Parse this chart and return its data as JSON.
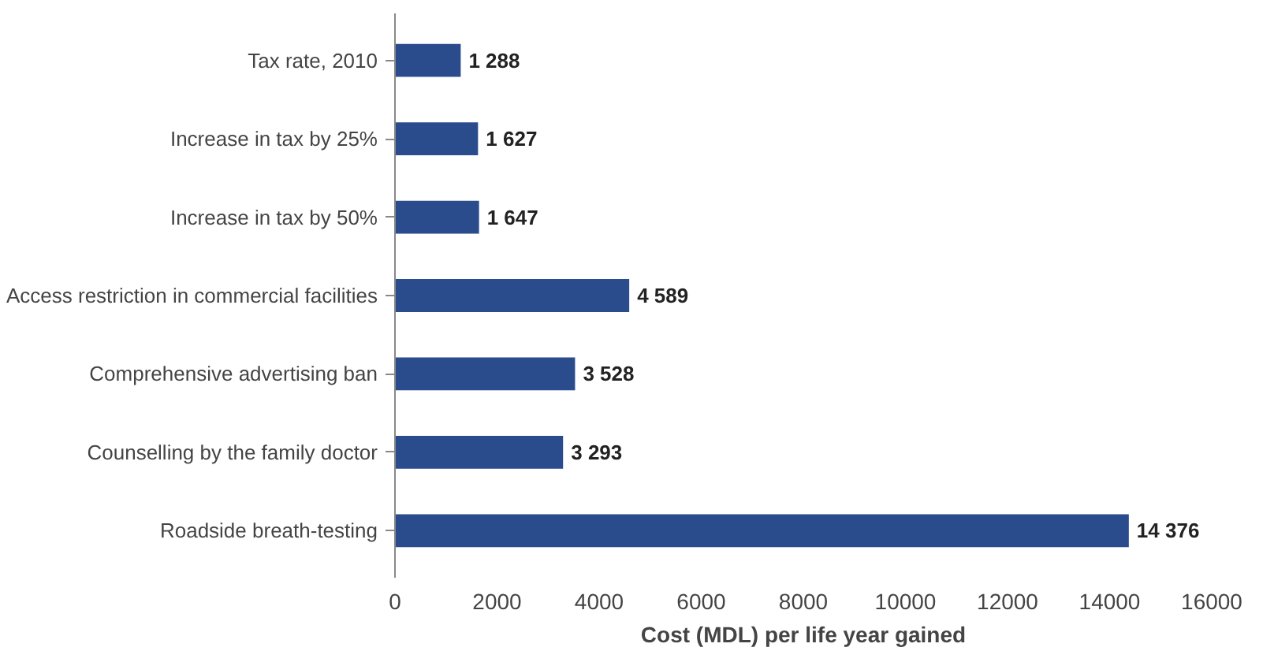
{
  "chart_data": {
    "type": "bar",
    "orientation": "horizontal",
    "xlabel": "Cost (MDL) per life year gained",
    "categories": [
      "Tax rate, 2010",
      "Increase in tax by 25%",
      "Increase in tax by 50%",
      "Access restriction in commercial facilities",
      "Comprehensive advertising ban",
      "Counselling by the family doctor",
      "Roadside breath-testing"
    ],
    "values": [
      1288,
      1627,
      1647,
      4589,
      3528,
      3293,
      14376
    ],
    "value_labels": [
      "1 288",
      "1 627",
      "1 647",
      "4 589",
      "3 528",
      "3 293",
      "14 376"
    ],
    "color": "#2b4c8c",
    "xlim": [
      0,
      16000
    ],
    "xticks": [
      0,
      2000,
      4000,
      6000,
      8000,
      10000,
      12000,
      14000,
      16000
    ],
    "grid": false
  }
}
